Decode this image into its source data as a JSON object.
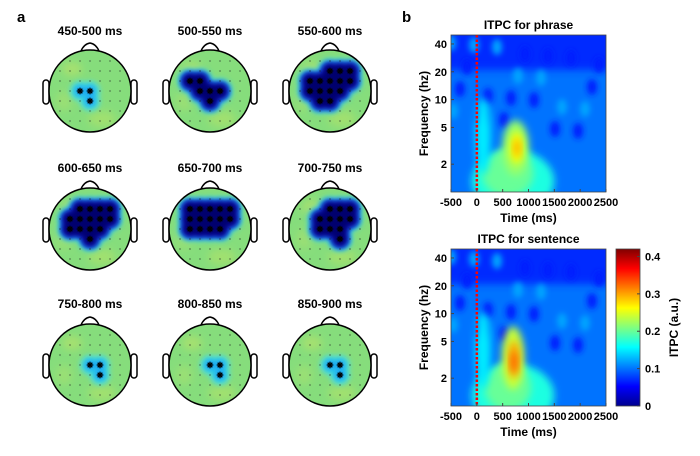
{
  "panel_a": {
    "label": "a",
    "topoplots": [
      {
        "title": "450-500 ms",
        "significant_electrodes": [
          [
            -1,
            0
          ],
          [
            0,
            0
          ],
          [
            0,
            1
          ]
        ],
        "effect": "weak"
      },
      {
        "title": "500-550 ms",
        "significant_electrodes": [
          [
            -2,
            -1
          ],
          [
            -1,
            -1
          ],
          [
            -1,
            0
          ],
          [
            0,
            0
          ],
          [
            1,
            0
          ],
          [
            0,
            1
          ]
        ],
        "effect": "strong"
      },
      {
        "title": "550-600 ms",
        "significant_electrodes": [
          [
            0,
            -2
          ],
          [
            1,
            -2
          ],
          [
            2,
            -2
          ],
          [
            -2,
            -1
          ],
          [
            -1,
            -1
          ],
          [
            0,
            -1
          ],
          [
            1,
            -1
          ],
          [
            2,
            -1
          ],
          [
            -2,
            0
          ],
          [
            -1,
            0
          ],
          [
            0,
            0
          ],
          [
            1,
            0
          ],
          [
            -1,
            1
          ],
          [
            0,
            1
          ]
        ],
        "effect": "strong"
      },
      {
        "title": "600-650 ms",
        "significant_electrodes": [
          [
            -1,
            -2
          ],
          [
            0,
            -2
          ],
          [
            1,
            -2
          ],
          [
            2,
            -2
          ],
          [
            -2,
            -1
          ],
          [
            -1,
            -1
          ],
          [
            0,
            -1
          ],
          [
            1,
            -1
          ],
          [
            2,
            -1
          ],
          [
            -2,
            0
          ],
          [
            -1,
            0
          ],
          [
            0,
            0
          ],
          [
            1,
            0
          ],
          [
            0,
            1
          ]
        ],
        "effect": "strong"
      },
      {
        "title": "650-700 ms",
        "significant_electrodes": [
          [
            -2,
            -2
          ],
          [
            -1,
            -2
          ],
          [
            0,
            -2
          ],
          [
            1,
            -2
          ],
          [
            2,
            -2
          ],
          [
            -2,
            -1
          ],
          [
            -1,
            -1
          ],
          [
            0,
            -1
          ],
          [
            1,
            -1
          ],
          [
            2,
            -1
          ],
          [
            -2,
            0
          ],
          [
            -1,
            0
          ],
          [
            0,
            0
          ],
          [
            1,
            0
          ]
        ],
        "effect": "strong"
      },
      {
        "title": "700-750 ms",
        "significant_electrodes": [
          [
            0,
            -2
          ],
          [
            1,
            -2
          ],
          [
            2,
            -2
          ],
          [
            -1,
            -1
          ],
          [
            0,
            -1
          ],
          [
            1,
            -1
          ],
          [
            2,
            -1
          ],
          [
            -1,
            0
          ],
          [
            0,
            0
          ],
          [
            1,
            0
          ],
          [
            1,
            1
          ]
        ],
        "effect": "strong"
      },
      {
        "title": "750-800 ms",
        "significant_electrodes": [
          [
            0,
            0
          ],
          [
            1,
            0
          ],
          [
            1,
            1
          ]
        ],
        "effect": "weak"
      },
      {
        "title": "800-850 ms",
        "significant_electrodes": [
          [
            0,
            0
          ],
          [
            1,
            0
          ],
          [
            1,
            1
          ]
        ],
        "effect": "weak"
      },
      {
        "title": "850-900 ms",
        "significant_electrodes": [
          [
            0,
            0
          ],
          [
            1,
            0
          ],
          [
            1,
            1
          ]
        ],
        "effect": "weak"
      }
    ]
  },
  "panel_b": {
    "label": "b"
  },
  "chart_data": [
    {
      "type": "heatmap",
      "title": "ITPC for phrase",
      "xlabel": "Time (ms)",
      "ylabel": "Frequency (hz)",
      "xlim": [
        -500,
        2500
      ],
      "ylim": [
        1,
        50
      ],
      "yscale": "log",
      "xticks": [
        "-500",
        "0",
        "500",
        "1000",
        "1500",
        "2000",
        "2500"
      ],
      "yticks": [
        "2",
        "5",
        "10",
        "20",
        "40"
      ],
      "onset_marker": {
        "time": 0,
        "color": "#ff0000",
        "style": "dotted"
      },
      "features": [
        {
          "time": 700,
          "freq": 1.3,
          "time_spread": 800,
          "freq_factor": 2.2,
          "value": 0.17
        },
        {
          "time": 600,
          "freq": 1.6,
          "time_spread": 500,
          "freq_factor": 1.8,
          "value": 0.2
        },
        {
          "time": 120,
          "freq": 4,
          "time_spread": 150,
          "freq_factor": 2.6,
          "value": 0.15
        },
        {
          "time": 750,
          "freq": 3,
          "time_spread": 260,
          "freq_factor": 2,
          "value": 0.22
        },
        {
          "time": 770,
          "freq": 3,
          "time_spread": 130,
          "freq_factor": 1.5,
          "value": 0.26
        },
        {
          "time": 780,
          "freq": 3,
          "time_spread": 60,
          "freq_factor": 1.25,
          "value": 0.3
        }
      ],
      "background_value": 0.1
    },
    {
      "type": "heatmap",
      "title": "ITPC for sentence",
      "xlabel": "Time (ms)",
      "ylabel": "Frequency (hz)",
      "xlim": [
        -500,
        2500
      ],
      "ylim": [
        1,
        50
      ],
      "yscale": "log",
      "xticks": [
        "-500",
        "0",
        "500",
        "1000",
        "1500",
        "2000",
        "2500"
      ],
      "yticks": [
        "2",
        "5",
        "10",
        "20",
        "40"
      ],
      "onset_marker": {
        "time": 0,
        "color": "#ff0000",
        "style": "dotted"
      },
      "features": [
        {
          "time": 700,
          "freq": 1.3,
          "time_spread": 800,
          "freq_factor": 2.2,
          "value": 0.17
        },
        {
          "time": 600,
          "freq": 1.6,
          "time_spread": 450,
          "freq_factor": 1.8,
          "value": 0.2
        },
        {
          "time": 120,
          "freq": 4,
          "time_spread": 150,
          "freq_factor": 2.6,
          "value": 0.15
        },
        {
          "time": 700,
          "freq": 3.3,
          "time_spread": 220,
          "freq_factor": 2.2,
          "value": 0.24
        },
        {
          "time": 720,
          "freq": 3.2,
          "time_spread": 110,
          "freq_factor": 1.6,
          "value": 0.3
        },
        {
          "time": 720,
          "freq": 3,
          "time_spread": 60,
          "freq_factor": 1.3,
          "value": 0.33
        }
      ],
      "background_value": 0.1,
      "colorbar": {
        "label": "ITPC (a.u.)",
        "range": [
          0,
          0.42
        ],
        "ticks": [
          "0",
          "0.1",
          "0.2",
          "0.3",
          "0.4"
        ],
        "colormap": "jet"
      }
    }
  ]
}
